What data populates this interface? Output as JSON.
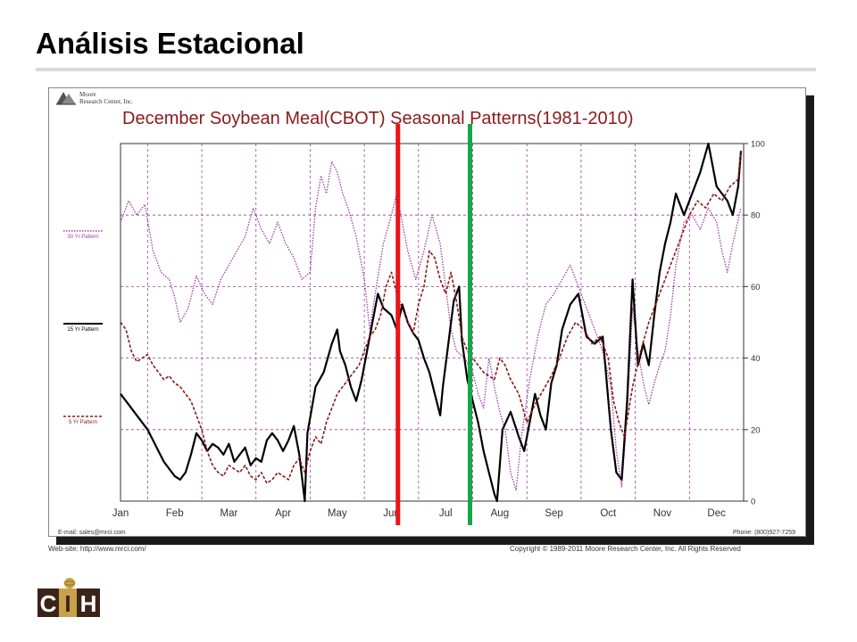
{
  "slide": {
    "title": "Análisis Estacional"
  },
  "publisher": {
    "name_line1": "Moore",
    "name_line2": "Research Center, Inc.",
    "email": "E-mail: sales@mrci.com",
    "phone": "Phone: (800)927-7259",
    "website": "Web-site: http://www.mrci.com/",
    "copyright": "Copyright © 1989-2011 Moore Research Center, Inc. All Rights Reserved"
  },
  "logo": {
    "text": "CIH",
    "letters": [
      "C",
      "I",
      "H"
    ]
  },
  "colors": {
    "pattern30": "#9a3fa0",
    "pattern15": "#000000",
    "pattern5": "#8b1a1a",
    "grid": "#9a3fa0",
    "title": "#8b1a1a",
    "marker_red": "#e8141c",
    "marker_green": "#14a84a"
  },
  "chart_data": {
    "type": "line",
    "title": "December Soybean Meal(CBOT) Seasonal Patterns(1981-2010)",
    "x_ticks": [
      "Jan",
      "Feb",
      "Mar",
      "Apr",
      "May",
      "Jun",
      "Jul",
      "Aug",
      "Sep",
      "Oct",
      "Nov",
      "Dec"
    ],
    "xlim": [
      0,
      11.5
    ],
    "ylim": [
      0,
      100
    ],
    "y_ticks": [
      0,
      20,
      40,
      60,
      80,
      100
    ],
    "grid": true,
    "legend": "left",
    "series": [
      {
        "name": "30 Yr Pattern",
        "key": "p30",
        "style": "dotted",
        "points": [
          [
            0,
            78
          ],
          [
            0.15,
            84
          ],
          [
            0.3,
            80
          ],
          [
            0.45,
            83
          ],
          [
            0.6,
            70
          ],
          [
            0.75,
            64
          ],
          [
            0.9,
            62
          ],
          [
            1.0,
            57
          ],
          [
            1.1,
            50
          ],
          [
            1.25,
            54
          ],
          [
            1.4,
            63
          ],
          [
            1.55,
            58
          ],
          [
            1.7,
            55
          ],
          [
            1.85,
            62
          ],
          [
            2.0,
            66
          ],
          [
            2.15,
            70
          ],
          [
            2.3,
            74
          ],
          [
            2.45,
            82
          ],
          [
            2.6,
            76
          ],
          [
            2.75,
            72
          ],
          [
            2.9,
            78
          ],
          [
            3.05,
            72
          ],
          [
            3.2,
            68
          ],
          [
            3.35,
            62
          ],
          [
            3.5,
            64
          ],
          [
            3.6,
            82
          ],
          [
            3.7,
            91
          ],
          [
            3.8,
            86
          ],
          [
            3.9,
            95
          ],
          [
            4.0,
            92
          ],
          [
            4.1,
            86
          ],
          [
            4.2,
            82
          ],
          [
            4.35,
            74
          ],
          [
            4.5,
            62
          ],
          [
            4.6,
            48
          ],
          [
            4.7,
            58
          ],
          [
            4.85,
            72
          ],
          [
            5.0,
            80
          ],
          [
            5.1,
            86
          ],
          [
            5.2,
            78
          ],
          [
            5.3,
            70
          ],
          [
            5.45,
            62
          ],
          [
            5.6,
            70
          ],
          [
            5.75,
            80
          ],
          [
            5.9,
            72
          ],
          [
            6.0,
            60
          ],
          [
            6.1,
            48
          ],
          [
            6.2,
            42
          ],
          [
            6.35,
            40
          ],
          [
            6.5,
            36
          ],
          [
            6.6,
            30
          ],
          [
            6.7,
            26
          ],
          [
            6.8,
            40
          ],
          [
            6.9,
            32
          ],
          [
            7.0,
            25
          ],
          [
            7.1,
            20
          ],
          [
            7.2,
            8
          ],
          [
            7.3,
            3
          ],
          [
            7.4,
            18
          ],
          [
            7.55,
            34
          ],
          [
            7.7,
            46
          ],
          [
            7.85,
            55
          ],
          [
            8.0,
            58
          ],
          [
            8.15,
            62
          ],
          [
            8.3,
            66
          ],
          [
            8.45,
            60
          ],
          [
            8.6,
            54
          ],
          [
            8.75,
            48
          ],
          [
            8.9,
            42
          ],
          [
            9.05,
            32
          ],
          [
            9.15,
            14
          ],
          [
            9.25,
            4
          ],
          [
            9.35,
            24
          ],
          [
            9.45,
            54
          ],
          [
            9.55,
            42
          ],
          [
            9.65,
            33
          ],
          [
            9.75,
            27
          ],
          [
            9.85,
            33
          ],
          [
            9.95,
            38
          ],
          [
            10.05,
            42
          ],
          [
            10.15,
            52
          ],
          [
            10.25,
            66
          ],
          [
            10.4,
            78
          ],
          [
            10.55,
            80
          ],
          [
            10.7,
            76
          ],
          [
            10.85,
            82
          ],
          [
            11.0,
            78
          ],
          [
            11.1,
            70
          ],
          [
            11.2,
            64
          ],
          [
            11.3,
            72
          ],
          [
            11.45,
            82
          ]
        ]
      },
      {
        "name": "15 Yr Pattern",
        "key": "p15",
        "style": "solid",
        "points": [
          [
            0,
            30
          ],
          [
            0.1,
            28
          ],
          [
            0.2,
            26
          ],
          [
            0.3,
            24
          ],
          [
            0.4,
            22
          ],
          [
            0.5,
            20
          ],
          [
            0.6,
            17
          ],
          [
            0.7,
            14
          ],
          [
            0.8,
            11
          ],
          [
            0.9,
            9
          ],
          [
            1.0,
            7
          ],
          [
            1.1,
            6
          ],
          [
            1.2,
            8
          ],
          [
            1.3,
            13
          ],
          [
            1.4,
            19
          ],
          [
            1.5,
            17
          ],
          [
            1.6,
            14
          ],
          [
            1.7,
            16
          ],
          [
            1.8,
            15
          ],
          [
            1.9,
            13
          ],
          [
            2.0,
            16
          ],
          [
            2.1,
            11
          ],
          [
            2.2,
            13
          ],
          [
            2.3,
            15
          ],
          [
            2.4,
            10
          ],
          [
            2.5,
            12
          ],
          [
            2.6,
            11
          ],
          [
            2.7,
            17
          ],
          [
            2.8,
            19
          ],
          [
            2.9,
            17
          ],
          [
            3.0,
            14
          ],
          [
            3.1,
            17
          ],
          [
            3.2,
            21
          ],
          [
            3.3,
            13
          ],
          [
            3.4,
            0
          ],
          [
            3.45,
            19
          ],
          [
            3.6,
            32
          ],
          [
            3.75,
            36
          ],
          [
            3.9,
            44
          ],
          [
            4.0,
            48
          ],
          [
            4.05,
            42
          ],
          [
            4.15,
            38
          ],
          [
            4.25,
            32
          ],
          [
            4.35,
            28
          ],
          [
            4.45,
            34
          ],
          [
            4.55,
            42
          ],
          [
            4.65,
            50
          ],
          [
            4.75,
            58
          ],
          [
            4.85,
            54
          ],
          [
            5.0,
            52
          ],
          [
            5.1,
            48
          ],
          [
            5.2,
            55
          ],
          [
            5.3,
            50
          ],
          [
            5.4,
            47
          ],
          [
            5.5,
            45
          ],
          [
            5.6,
            40
          ],
          [
            5.7,
            36
          ],
          [
            5.8,
            30
          ],
          [
            5.9,
            24
          ],
          [
            5.95,
            32
          ],
          [
            6.05,
            44
          ],
          [
            6.15,
            56
          ],
          [
            6.25,
            60
          ],
          [
            6.3,
            45
          ],
          [
            6.4,
            34
          ],
          [
            6.5,
            28
          ],
          [
            6.6,
            22
          ],
          [
            6.7,
            14
          ],
          [
            6.8,
            8
          ],
          [
            6.9,
            2
          ],
          [
            6.95,
            0
          ],
          [
            7.05,
            20
          ],
          [
            7.2,
            25
          ],
          [
            7.35,
            18
          ],
          [
            7.45,
            14
          ],
          [
            7.55,
            22
          ],
          [
            7.65,
            30
          ],
          [
            7.75,
            24
          ],
          [
            7.85,
            20
          ],
          [
            7.95,
            33
          ],
          [
            8.05,
            38
          ],
          [
            8.15,
            48
          ],
          [
            8.3,
            55
          ],
          [
            8.45,
            58
          ],
          [
            8.6,
            46
          ],
          [
            8.75,
            44
          ],
          [
            8.9,
            46
          ],
          [
            9.05,
            20
          ],
          [
            9.15,
            8
          ],
          [
            9.25,
            6
          ],
          [
            9.35,
            28
          ],
          [
            9.45,
            62
          ],
          [
            9.55,
            38
          ],
          [
            9.65,
            44
          ],
          [
            9.75,
            38
          ],
          [
            9.85,
            52
          ],
          [
            9.95,
            64
          ],
          [
            10.05,
            72
          ],
          [
            10.15,
            78
          ],
          [
            10.25,
            86
          ],
          [
            10.4,
            80
          ],
          [
            10.55,
            86
          ],
          [
            10.7,
            92
          ],
          [
            10.85,
            100
          ],
          [
            11.0,
            88
          ],
          [
            11.1,
            86
          ],
          [
            11.2,
            84
          ],
          [
            11.3,
            80
          ],
          [
            11.4,
            88
          ],
          [
            11.45,
            98
          ]
        ]
      },
      {
        "name": "5 Yr Pattern",
        "key": "p5",
        "style": "dashed",
        "points": [
          [
            0,
            50
          ],
          [
            0.1,
            48
          ],
          [
            0.2,
            42
          ],
          [
            0.3,
            39
          ],
          [
            0.4,
            40
          ],
          [
            0.5,
            41
          ],
          [
            0.6,
            38
          ],
          [
            0.7,
            36
          ],
          [
            0.8,
            34
          ],
          [
            0.9,
            35
          ],
          [
            1.0,
            33
          ],
          [
            1.1,
            32
          ],
          [
            1.2,
            30
          ],
          [
            1.3,
            28
          ],
          [
            1.4,
            24
          ],
          [
            1.5,
            20
          ],
          [
            1.6,
            14
          ],
          [
            1.7,
            10
          ],
          [
            1.8,
            8
          ],
          [
            1.9,
            7
          ],
          [
            2.0,
            10
          ],
          [
            2.1,
            9
          ],
          [
            2.2,
            8
          ],
          [
            2.3,
            10
          ],
          [
            2.4,
            7
          ],
          [
            2.5,
            6
          ],
          [
            2.6,
            8
          ],
          [
            2.7,
            5
          ],
          [
            2.8,
            6
          ],
          [
            2.9,
            8
          ],
          [
            3.0,
            7
          ],
          [
            3.1,
            6
          ],
          [
            3.2,
            10
          ],
          [
            3.3,
            12
          ],
          [
            3.4,
            8
          ],
          [
            3.5,
            14
          ],
          [
            3.6,
            18
          ],
          [
            3.7,
            16
          ],
          [
            3.8,
            22
          ],
          [
            3.9,
            26
          ],
          [
            4.0,
            30
          ],
          [
            4.1,
            32
          ],
          [
            4.2,
            34
          ],
          [
            4.3,
            36
          ],
          [
            4.4,
            38
          ],
          [
            4.5,
            42
          ],
          [
            4.6,
            46
          ],
          [
            4.7,
            48
          ],
          [
            4.8,
            52
          ],
          [
            4.9,
            60
          ],
          [
            5.0,
            64
          ],
          [
            5.1,
            58
          ],
          [
            5.2,
            54
          ],
          [
            5.3,
            50
          ],
          [
            5.4,
            47
          ],
          [
            5.5,
            55
          ],
          [
            5.6,
            60
          ],
          [
            5.7,
            70
          ],
          [
            5.8,
            68
          ],
          [
            5.9,
            62
          ],
          [
            6.0,
            58
          ],
          [
            6.1,
            64
          ],
          [
            6.2,
            56
          ],
          [
            6.3,
            46
          ],
          [
            6.4,
            42
          ],
          [
            6.5,
            40
          ],
          [
            6.6,
            38
          ],
          [
            6.7,
            36
          ],
          [
            6.8,
            35
          ],
          [
            6.9,
            34
          ],
          [
            7.0,
            40
          ],
          [
            7.1,
            38
          ],
          [
            7.2,
            34
          ],
          [
            7.35,
            30
          ],
          [
            7.5,
            22
          ],
          [
            7.65,
            27
          ],
          [
            7.8,
            31
          ],
          [
            7.95,
            35
          ],
          [
            8.1,
            40
          ],
          [
            8.25,
            46
          ],
          [
            8.4,
            50
          ],
          [
            8.55,
            48
          ],
          [
            8.7,
            44
          ],
          [
            8.85,
            46
          ],
          [
            9.0,
            40
          ],
          [
            9.1,
            28
          ],
          [
            9.2,
            22
          ],
          [
            9.3,
            18
          ],
          [
            9.45,
            32
          ],
          [
            9.6,
            42
          ],
          [
            9.75,
            50
          ],
          [
            9.9,
            56
          ],
          [
            10.05,
            62
          ],
          [
            10.2,
            68
          ],
          [
            10.35,
            74
          ],
          [
            10.5,
            80
          ],
          [
            10.65,
            84
          ],
          [
            10.8,
            82
          ],
          [
            10.95,
            86
          ],
          [
            11.1,
            84
          ],
          [
            11.25,
            88
          ],
          [
            11.4,
            90
          ],
          [
            11.45,
            98
          ]
        ]
      }
    ],
    "markers": [
      {
        "color": "red",
        "x": 5.12
      },
      {
        "color": "green",
        "x": 6.45
      }
    ]
  }
}
